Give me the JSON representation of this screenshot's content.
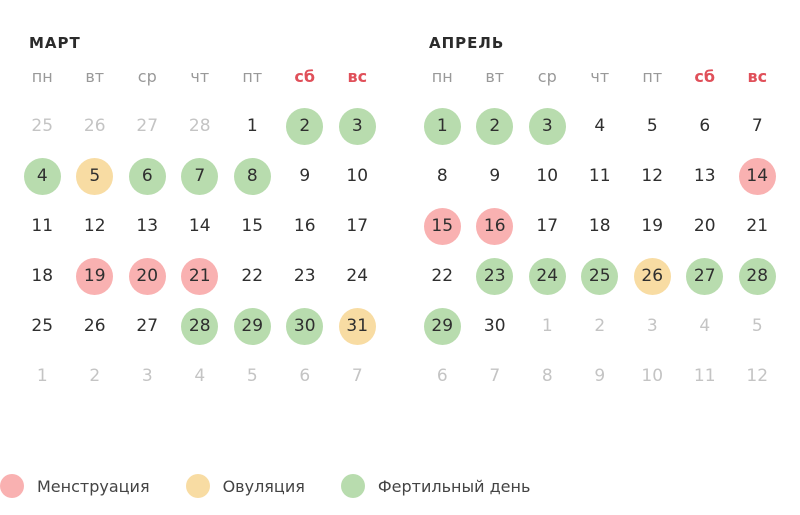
{
  "weekdays": [
    "пн",
    "вт",
    "ср",
    "чт",
    "пт",
    "сб",
    "вс"
  ],
  "weekend_color": "#e0505a",
  "colors": {
    "menstruation": "#f9b1b1",
    "ovulation": "#f8dca3",
    "fertile": "#b8dcae"
  },
  "months": [
    {
      "title": "МАРТ",
      "weeks": [
        [
          {
            "d": "25",
            "t": "other"
          },
          {
            "d": "26",
            "t": "other"
          },
          {
            "d": "27",
            "t": "other"
          },
          {
            "d": "28",
            "t": "other"
          },
          {
            "d": "1",
            "t": ""
          },
          {
            "d": "2",
            "t": "f"
          },
          {
            "d": "3",
            "t": "f"
          }
        ],
        [
          {
            "d": "4",
            "t": "f"
          },
          {
            "d": "5",
            "t": "o"
          },
          {
            "d": "6",
            "t": "f"
          },
          {
            "d": "7",
            "t": "f"
          },
          {
            "d": "8",
            "t": "f"
          },
          {
            "d": "9",
            "t": ""
          },
          {
            "d": "10",
            "t": ""
          }
        ],
        [
          {
            "d": "11",
            "t": ""
          },
          {
            "d": "12",
            "t": ""
          },
          {
            "d": "13",
            "t": ""
          },
          {
            "d": "14",
            "t": ""
          },
          {
            "d": "15",
            "t": ""
          },
          {
            "d": "16",
            "t": ""
          },
          {
            "d": "17",
            "t": ""
          }
        ],
        [
          {
            "d": "18",
            "t": ""
          },
          {
            "d": "19",
            "t": "m"
          },
          {
            "d": "20",
            "t": "m"
          },
          {
            "d": "21",
            "t": "m"
          },
          {
            "d": "22",
            "t": ""
          },
          {
            "d": "23",
            "t": ""
          },
          {
            "d": "24",
            "t": ""
          }
        ],
        [
          {
            "d": "25",
            "t": ""
          },
          {
            "d": "26",
            "t": ""
          },
          {
            "d": "27",
            "t": ""
          },
          {
            "d": "28",
            "t": "f"
          },
          {
            "d": "29",
            "t": "f"
          },
          {
            "d": "30",
            "t": "f"
          },
          {
            "d": "31",
            "t": "o"
          }
        ],
        [
          {
            "d": "1",
            "t": "other"
          },
          {
            "d": "2",
            "t": "other"
          },
          {
            "d": "3",
            "t": "other"
          },
          {
            "d": "4",
            "t": "other"
          },
          {
            "d": "5",
            "t": "other"
          },
          {
            "d": "6",
            "t": "other"
          },
          {
            "d": "7",
            "t": "other"
          }
        ]
      ]
    },
    {
      "title": "АПРЕЛЬ",
      "weeks": [
        [
          {
            "d": "1",
            "t": "f"
          },
          {
            "d": "2",
            "t": "f"
          },
          {
            "d": "3",
            "t": "f"
          },
          {
            "d": "4",
            "t": ""
          },
          {
            "d": "5",
            "t": ""
          },
          {
            "d": "6",
            "t": ""
          },
          {
            "d": "7",
            "t": ""
          }
        ],
        [
          {
            "d": "8",
            "t": ""
          },
          {
            "d": "9",
            "t": ""
          },
          {
            "d": "10",
            "t": ""
          },
          {
            "d": "11",
            "t": ""
          },
          {
            "d": "12",
            "t": ""
          },
          {
            "d": "13",
            "t": ""
          },
          {
            "d": "14",
            "t": "m"
          }
        ],
        [
          {
            "d": "15",
            "t": "m"
          },
          {
            "d": "16",
            "t": "m"
          },
          {
            "d": "17",
            "t": ""
          },
          {
            "d": "18",
            "t": ""
          },
          {
            "d": "19",
            "t": ""
          },
          {
            "d": "20",
            "t": ""
          },
          {
            "d": "21",
            "t": ""
          }
        ],
        [
          {
            "d": "22",
            "t": ""
          },
          {
            "d": "23",
            "t": "f"
          },
          {
            "d": "24",
            "t": "f"
          },
          {
            "d": "25",
            "t": "f"
          },
          {
            "d": "26",
            "t": "o"
          },
          {
            "d": "27",
            "t": "f"
          },
          {
            "d": "28",
            "t": "f"
          }
        ],
        [
          {
            "d": "29",
            "t": "f"
          },
          {
            "d": "30",
            "t": ""
          },
          {
            "d": "1",
            "t": "other"
          },
          {
            "d": "2",
            "t": "other"
          },
          {
            "d": "3",
            "t": "other"
          },
          {
            "d": "4",
            "t": "other"
          },
          {
            "d": "5",
            "t": "other"
          }
        ],
        [
          {
            "d": "6",
            "t": "other"
          },
          {
            "d": "7",
            "t": "other"
          },
          {
            "d": "8",
            "t": "other"
          },
          {
            "d": "9",
            "t": "other"
          },
          {
            "d": "10",
            "t": "other"
          },
          {
            "d": "11",
            "t": "other"
          },
          {
            "d": "12",
            "t": "other"
          }
        ]
      ]
    }
  ],
  "legend": [
    {
      "key": "menstruation",
      "label": "Менструация",
      "color": "#f9b1b1"
    },
    {
      "key": "ovulation",
      "label": "Овуляция",
      "color": "#f8dca3"
    },
    {
      "key": "fertile",
      "label": "Фертильный день",
      "color": "#b8dcae"
    }
  ]
}
